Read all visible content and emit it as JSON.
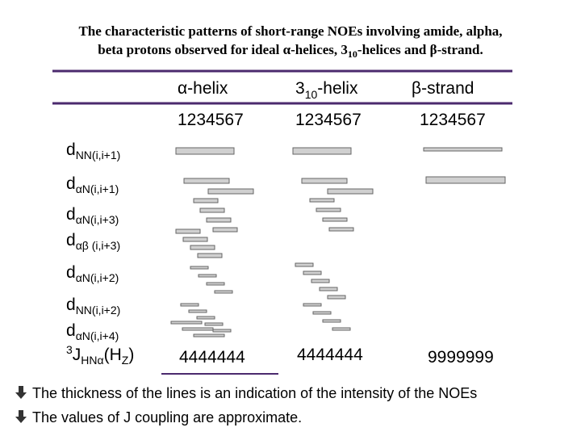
{
  "title": {
    "line1": "The characteristic patterns of short-range NOEs involving amide, alpha,",
    "line2_start": "beta protons observed for ideal α-helices, 3",
    "line2_sub": "10",
    "line2_end": "-helices and β-strand."
  },
  "columns": [
    {
      "name": "α-helix",
      "residues": "1234567",
      "coupling": "4444444"
    },
    {
      "name": "3",
      "name_sub": "10",
      "name_end": "-helix",
      "residues": "1234567",
      "coupling": "4444444"
    },
    {
      "name": "β-strand",
      "residues": "1234567",
      "coupling": "9999999"
    }
  ],
  "rows": [
    {
      "main": "d",
      "sub": "NN(i,i+1)"
    },
    {
      "main": "d",
      "sub": "αN(i,i+1)"
    },
    {
      "main": "d",
      "sub": "αN(i,i+3)"
    },
    {
      "main": "d",
      "sub": "αβ (i,i+3)"
    },
    {
      "main": "d",
      "sub": "αN(i,i+2)"
    },
    {
      "main": "d",
      "sub": "NN(i,i+2)"
    },
    {
      "main": "d",
      "sub": "αN(i,i+4)"
    }
  ],
  "coupling_label": {
    "sup": "3",
    "main": "J",
    "sub": "HNα",
    "mid": "(H",
    "sub2": "Z",
    "end": ")"
  },
  "bullets": [
    "The thickness of the lines is an indication of the intensity of the NOEs",
    "The values of J coupling are approximate."
  ]
}
